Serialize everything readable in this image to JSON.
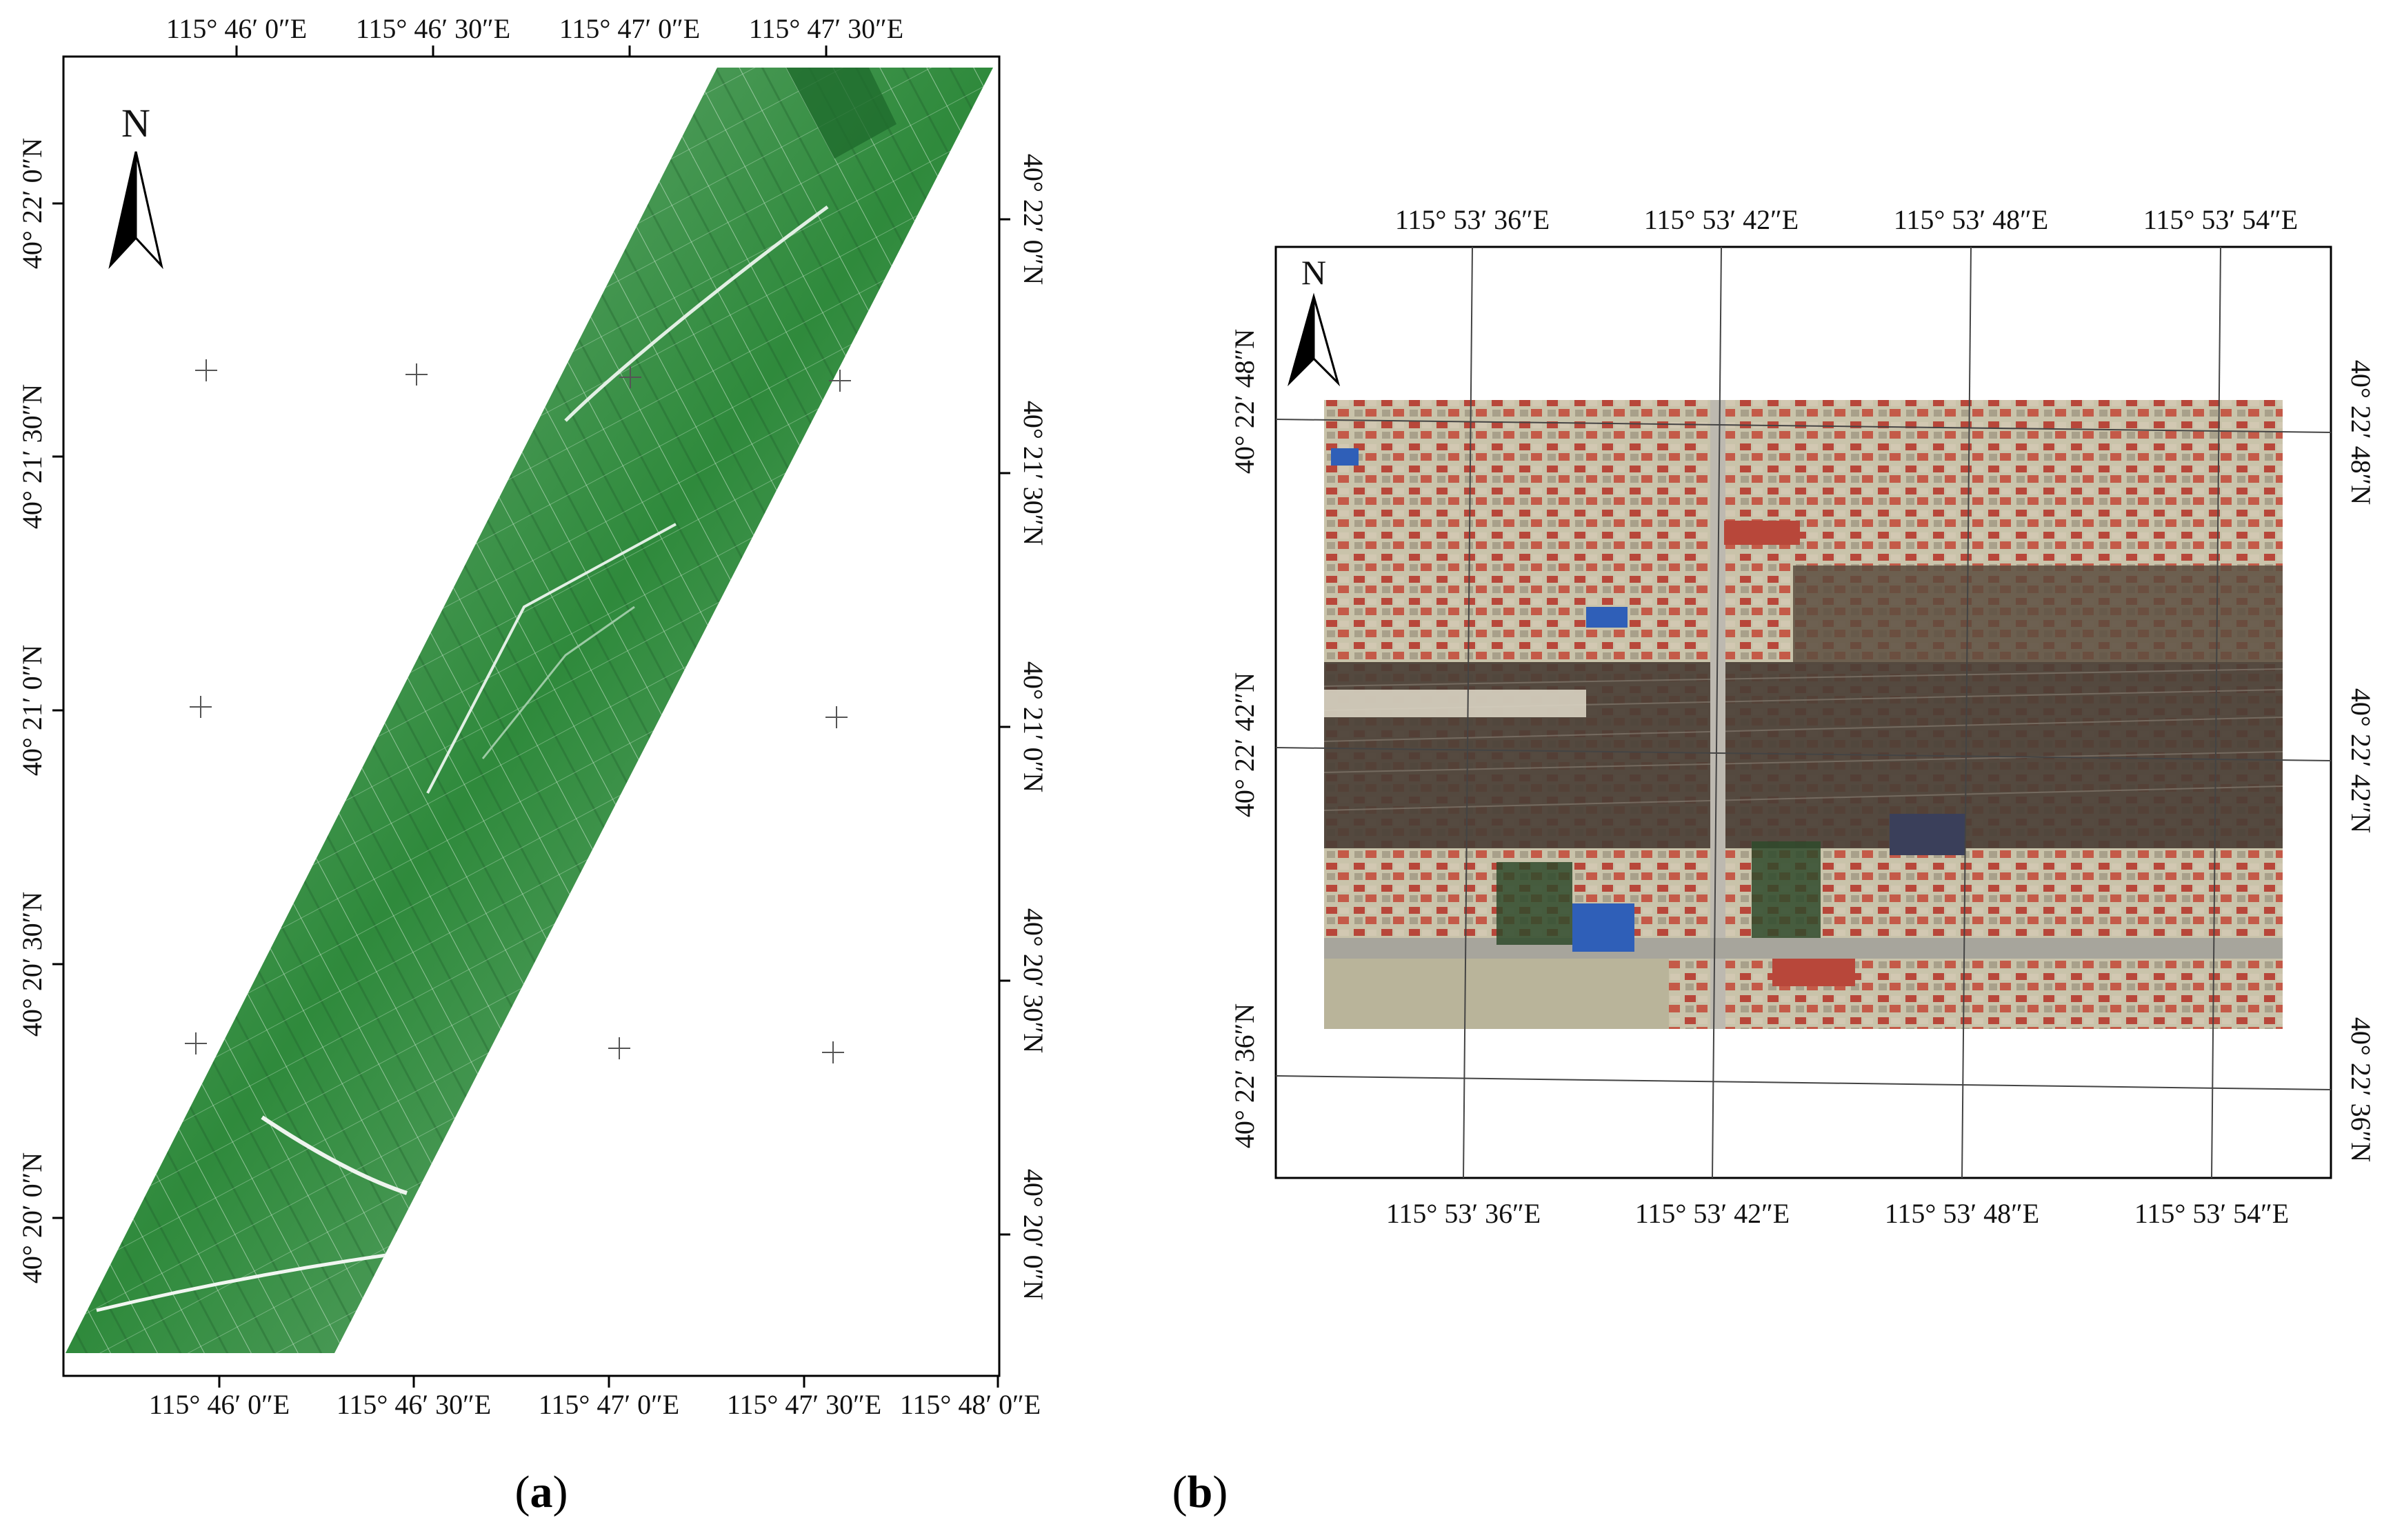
{
  "figure": {
    "captions": [
      {
        "open": "(",
        "letter": "a",
        "close": ")"
      },
      {
        "open": "(",
        "letter": "b",
        "close": ")"
      }
    ]
  },
  "panel_a": {
    "north_label": "N",
    "top_lon_labels": [
      "115°  46′ 0″E",
      "115°  46′ 30″E",
      "115°  47′ 0″E",
      "115°  47′ 30″E"
    ],
    "bottom_lon_labels": [
      "115°  46′ 0″E",
      "115°  46′ 30″E",
      "115°  47′ 0″E",
      "115°  47′ 30″E",
      "115°  48′ 0″E"
    ],
    "lat_labels": [
      "40°  22′ 0″N",
      "40°  21′ 30″N",
      "40°  21′ 0″N",
      "40°  20′ 30″N",
      "40°  20′ 0″N"
    ],
    "image_colors": {
      "base": "#2f8a3c",
      "light": "#7fb88a",
      "dark": "#1f6b2d"
    }
  },
  "panel_b": {
    "north_label": "N",
    "lon_labels": [
      "115°  53′ 36″E",
      "115°  53′ 42″E",
      "115°  53′ 48″E",
      "115°  53′ 54″E"
    ],
    "lat_labels": [
      "40°  22′ 48″N",
      "40°  22′ 42″N",
      "40°  22′ 36″N"
    ],
    "image_colors": {
      "roof_red": "#b8473a",
      "roof_blue": "#2f5fb8",
      "ground": "#b9b49a",
      "rail": "#4a3f36",
      "tree": "#2f4a2c"
    }
  }
}
